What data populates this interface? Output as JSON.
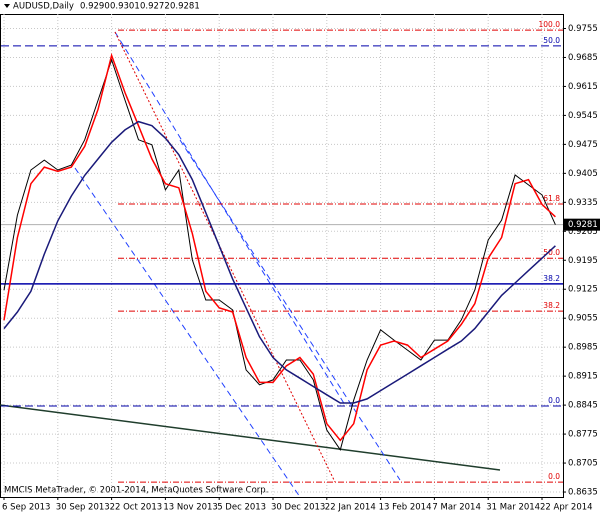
{
  "header": {
    "symbol": "AUDUSD,Daily",
    "ohlc": [
      "0.9290",
      "0.9301",
      "0.9272",
      "0.9281"
    ]
  },
  "footer": "MMCIS MetaTrader, © 2001-2014, MetaQuotes Software Corp.",
  "chart_data": {
    "type": "line",
    "categories": [
      "6 Sep 2013",
      null,
      null,
      null,
      "30 Sep 2013",
      null,
      null,
      null,
      "22 Oct 2013",
      null,
      null,
      null,
      "13 Nov 2013",
      null,
      null,
      null,
      "5 Dec 2013",
      null,
      null,
      null,
      "30 Dec 2013",
      null,
      null,
      null,
      "22 Jan 2014",
      null,
      null,
      null,
      "13 Feb 2014",
      null,
      null,
      null,
      "7 Mar 2014",
      null,
      null,
      null,
      "31 Mar 2014",
      null,
      null,
      null,
      "22 Apr 2014",
      null
    ],
    "series": [
      {
        "color": "#000000",
        "values": [
          0.9123,
          0.9304,
          0.9413,
          0.9437,
          0.9413,
          0.9425,
          0.9486,
          0.9582,
          0.9679,
          0.9582,
          0.9486,
          0.9474,
          0.9365,
          0.9413,
          0.9196,
          0.9099,
          0.9099,
          0.9075,
          0.893,
          0.8894,
          0.8906,
          0.8954,
          0.8954,
          0.8906,
          0.8785,
          0.8737,
          0.8857,
          0.8954,
          0.9027,
          0.9002,
          0.8978,
          0.8954,
          0.9002,
          0.9002,
          0.9051,
          0.9123,
          0.9244,
          0.9292,
          0.9401,
          0.9377,
          0.9353,
          0.9281
        ]
      },
      {
        "color": "#ff0000",
        "values": [
          0.905,
          0.925,
          0.938,
          0.942,
          0.941,
          0.942,
          0.947,
          0.956,
          0.969,
          0.96,
          0.952,
          0.944,
          0.938,
          0.937,
          0.926,
          0.912,
          0.908,
          0.907,
          0.896,
          0.89,
          0.89,
          0.894,
          0.896,
          0.892,
          0.88,
          0.876,
          0.88,
          0.893,
          0.899,
          0.9,
          0.899,
          0.896,
          0.898,
          0.9,
          0.904,
          0.909,
          0.92,
          0.925,
          0.938,
          0.939,
          0.933,
          0.93
        ]
      },
      {
        "color": "#1a1a7a",
        "values": [
          0.903,
          0.907,
          0.912,
          0.921,
          0.929,
          0.935,
          0.94,
          0.944,
          0.948,
          0.951,
          0.953,
          0.952,
          0.949,
          0.945,
          0.939,
          0.931,
          0.923,
          0.915,
          0.908,
          0.901,
          0.896,
          0.893,
          0.891,
          0.889,
          0.887,
          0.885,
          0.885,
          0.886,
          0.888,
          0.89,
          0.892,
          0.894,
          0.896,
          0.898,
          0.9,
          0.903,
          0.907,
          0.911,
          0.914,
          0.917,
          0.92,
          0.923
        ]
      }
    ],
    "ylim": [
      0.8623,
      0.979
    ],
    "yticks": [
      0.9755,
      0.9685,
      0.9615,
      0.9545,
      0.9475,
      0.9405,
      0.9335,
      0.9265,
      0.9195,
      0.9125,
      0.9055,
      0.8985,
      0.8915,
      0.8845,
      0.8775,
      0.8705,
      0.8635
    ],
    "grid": true,
    "last_price": {
      "value": 0.9281,
      "label": "0.9281"
    },
    "fib_levels": [
      {
        "text": "100.0",
        "price": 0.9751
      },
      {
        "text": "61.8",
        "price": 0.9331
      },
      {
        "text": "50.0",
        "price": 0.92
      },
      {
        "text": "38.2",
        "price": 0.9072
      },
      {
        "text": "0.0",
        "price": 0.8659
      }
    ],
    "fib_color": "#e00000",
    "hlines": [
      {
        "text": "50.0",
        "price": 0.9713,
        "style": "dash"
      },
      {
        "text": "38.2",
        "price": 0.9138,
        "style": "solid"
      },
      {
        "text": "0.0",
        "price": 0.8843,
        "style": "dash"
      }
    ],
    "hline_color": "#0000aa"
  }
}
